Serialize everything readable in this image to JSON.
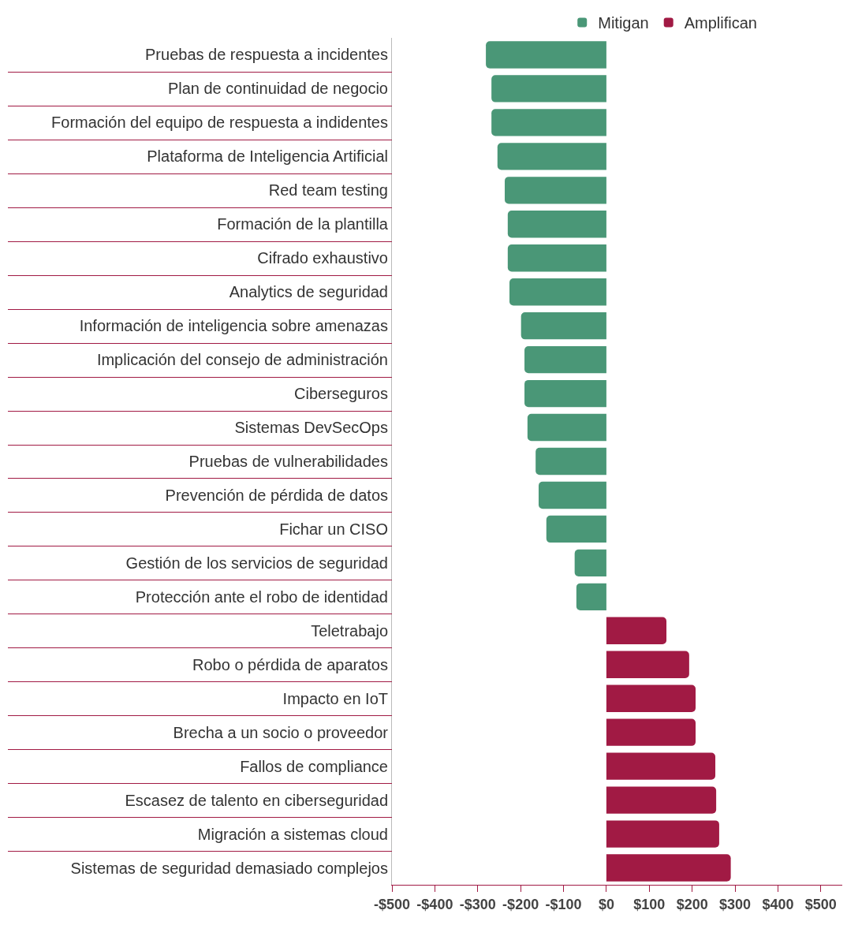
{
  "chart_data": {
    "type": "bar",
    "orientation": "horizontal",
    "categories": [
      "Pruebas de respuesta a incidentes",
      "Plan de continuidad de negocio",
      "Formación del equipo de respuesta a indidentes",
      "Plataforma de Inteligencia Artificial",
      "Red team testing",
      "Formación de la plantilla",
      "Cifrado exhaustivo",
      "Analytics de seguridad",
      "Información de inteligencia sobre amenazas",
      "Implicación del consejo de administración",
      "Ciberseguros",
      "Sistemas DevSecOps",
      "Pruebas de vulnerabilidades",
      "Prevención de pérdida de datos",
      "Fichar un CISO",
      "Gestión de los servicios de seguridad",
      "Protección ante el robo de identidad",
      "Teletrabajo",
      "Robo o pérdida de aparatos",
      "Impacto en IoT",
      "Brecha a un socio o proveedor",
      "Fallos de compliance",
      "Escasez de talento en ciberseguridad",
      "Migración a sistemas cloud",
      "Sistemas de seguridad demasiado complejos"
    ],
    "series": [
      {
        "name": "Mitigan",
        "color": "#4a9777",
        "values": [
          -281,
          -268,
          -268,
          -254,
          -237,
          -230,
          -230,
          -226,
          -199,
          -191,
          -191,
          -184,
          -165,
          -158,
          -140,
          -74,
          -70,
          null,
          null,
          null,
          null,
          null,
          null,
          null,
          null
        ]
      },
      {
        "name": "Amplifican",
        "color": "#a11a44",
        "values": [
          null,
          null,
          null,
          null,
          null,
          null,
          null,
          null,
          null,
          null,
          null,
          null,
          null,
          null,
          null,
          null,
          null,
          140,
          193,
          208,
          208,
          254,
          256,
          263,
          290
        ]
      }
    ],
    "xlim": [
      -500,
      550
    ],
    "xticks": [
      {
        "value": -500,
        "label": "-$500"
      },
      {
        "value": -400,
        "label": "-$400"
      },
      {
        "value": -300,
        "label": "-$300"
      },
      {
        "value": -200,
        "label": "-$200"
      },
      {
        "value": -100,
        "label": "-$100"
      },
      {
        "value": 0,
        "label": "$0"
      },
      {
        "value": 100,
        "label": "$100"
      },
      {
        "value": 200,
        "label": "$200"
      },
      {
        "value": 300,
        "label": "$300"
      },
      {
        "value": 400,
        "label": "$400"
      },
      {
        "value": 500,
        "label": "$500"
      }
    ],
    "grid": false,
    "legend": "top right"
  }
}
